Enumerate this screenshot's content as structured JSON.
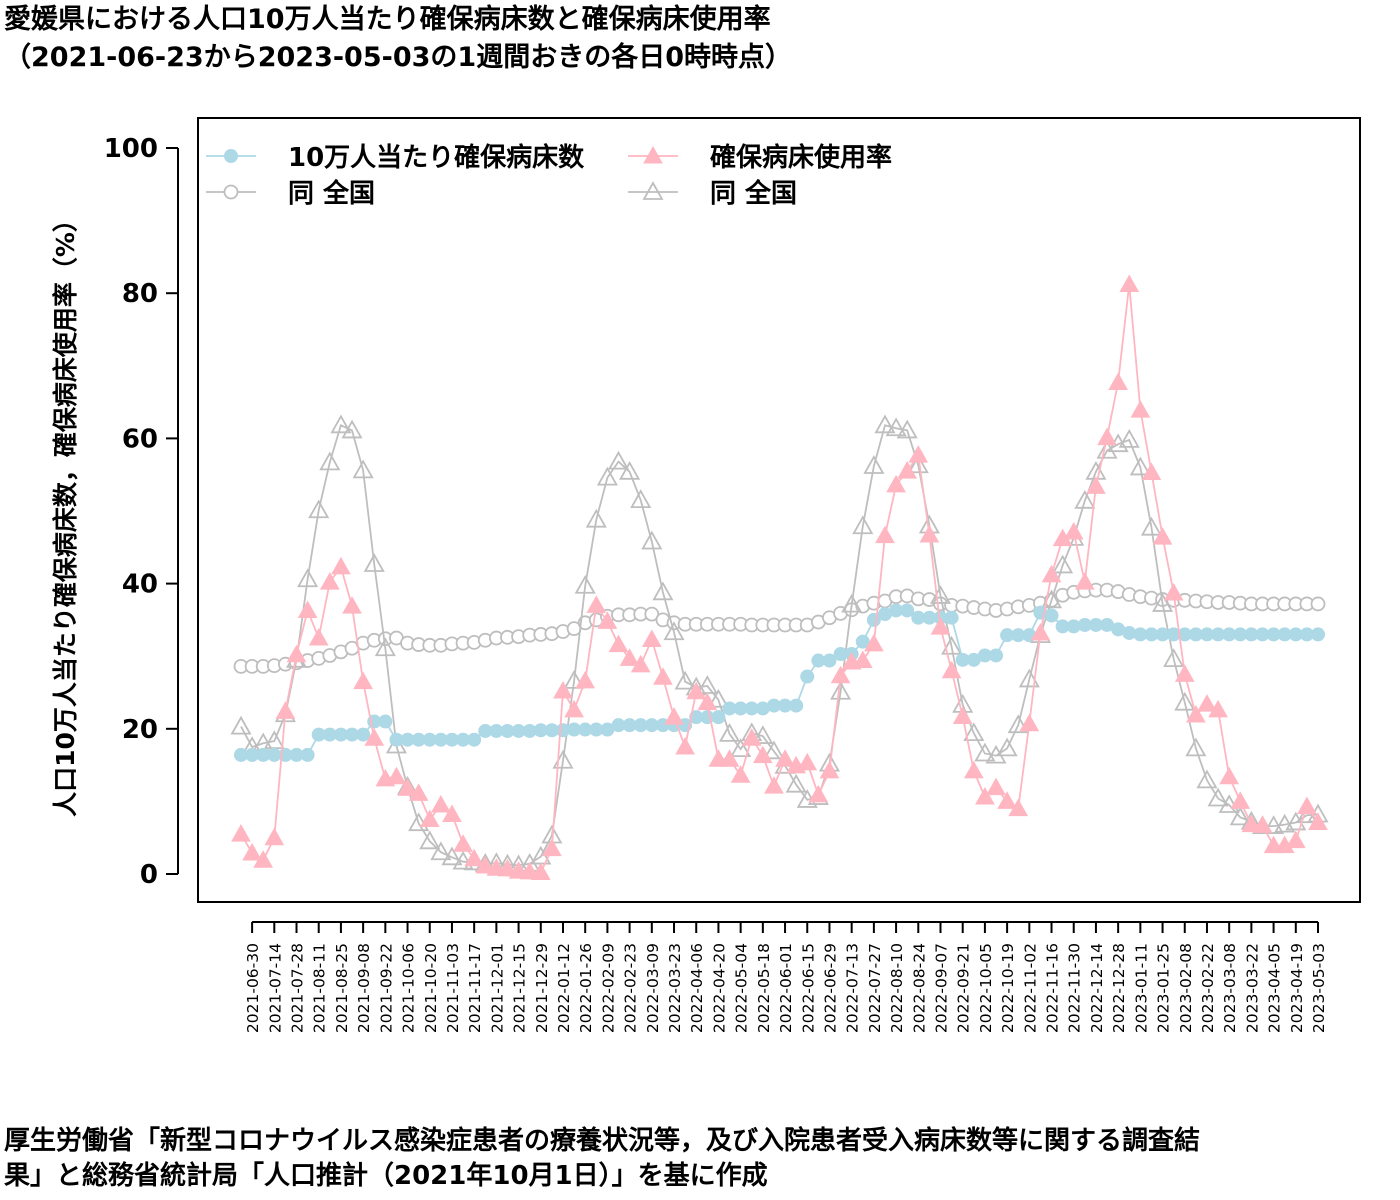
{
  "title": "愛媛県における人口10万人当たり確保病床数と確保病床使用率",
  "subtitle": "（2021-06-23から2023-05-03の1週間おきの各日0時時点）",
  "note": {
    "line1": "厚生労働省「新型コロナウイルス感染症患者の療養状況等，及び入院患者受入病床数等に関する調査結",
    "line2": "果」と総務省統計局「人口推計（2021年10月1日）」を基に作成"
  },
  "chart_data": {
    "type": "line",
    "ylabel": "人口10万人当たり確保病床数，確保病床使用率（%）",
    "xlabel": "",
    "ylim": [
      0,
      100
    ],
    "yticks": [
      0,
      20,
      40,
      60,
      80,
      100
    ],
    "grid": false,
    "legend_position": "top-left",
    "x_tick_labels": [
      "2021-06-30",
      "2021-07-14",
      "2021-07-28",
      "2021-08-11",
      "2021-08-25",
      "2021-09-08",
      "2021-09-22",
      "2021-10-06",
      "2021-10-20",
      "2021-11-03",
      "2021-11-17",
      "2021-12-01",
      "2021-12-15",
      "2021-12-29",
      "2022-01-12",
      "2022-01-26",
      "2022-02-09",
      "2022-02-23",
      "2022-03-09",
      "2022-03-23",
      "2022-04-06",
      "2022-04-20",
      "2022-05-04",
      "2022-05-18",
      "2022-06-01",
      "2022-06-15",
      "2022-06-29",
      "2022-07-13",
      "2022-07-27",
      "2022-08-10",
      "2022-08-24",
      "2022-09-07",
      "2022-09-21",
      "2022-10-05",
      "2022-10-19",
      "2022-11-02",
      "2022-11-16",
      "2022-11-30",
      "2022-12-14",
      "2022-12-28",
      "2023-01-11",
      "2023-01-25",
      "2023-02-08",
      "2023-02-22",
      "2023-03-08",
      "2023-03-22",
      "2023-04-05",
      "2023-04-19",
      "2023-05-03"
    ],
    "series": [
      {
        "name": "10万人当たり確保病床数",
        "color": "#add8e6",
        "marker": "filled-circle",
        "values": [
          16.4,
          16.4,
          16.4,
          16.4,
          16.4,
          16.4,
          16.4,
          19.2,
          19.2,
          19.2,
          19.2,
          19.2,
          21.0,
          21.0,
          18.5,
          18.5,
          18.5,
          18.5,
          18.5,
          18.5,
          18.5,
          18.5,
          19.7,
          19.7,
          19.7,
          19.7,
          19.7,
          19.8,
          19.8,
          19.8,
          19.9,
          19.9,
          19.9,
          19.9,
          20.5,
          20.5,
          20.5,
          20.5,
          20.5,
          20.5,
          20.5,
          21.6,
          21.6,
          21.6,
          22.8,
          22.8,
          22.8,
          22.8,
          23.2,
          23.2,
          23.2,
          27.2,
          29.4,
          29.4,
          30.3,
          30.3,
          32.0,
          35.0,
          35.8,
          36.3,
          36.3,
          35.3,
          35.3,
          35.3,
          35.3,
          29.5,
          29.5,
          30.1,
          30.1,
          32.9,
          32.9,
          32.9,
          36.0,
          35.6,
          34.1,
          34.1,
          34.3,
          34.3,
          34.3,
          33.7,
          33.2,
          33.0,
          33.0,
          33.0,
          33.0,
          33.0,
          33.0,
          33.0,
          33.0,
          33.0,
          33.0,
          33.0,
          33.0,
          33.0,
          33.0,
          33.0,
          33.0,
          33.0
        ]
      },
      {
        "name": "同 全国",
        "color": "#bebebe",
        "marker": "open-circle",
        "values": [
          28.6,
          28.6,
          28.6,
          28.7,
          28.9,
          29.1,
          29.4,
          29.7,
          30.1,
          30.6,
          31.1,
          31.8,
          32.2,
          32.4,
          32.5,
          31.8,
          31.6,
          31.5,
          31.5,
          31.7,
          31.8,
          31.9,
          32.2,
          32.5,
          32.6,
          32.7,
          32.9,
          33.0,
          33.1,
          33.4,
          33.8,
          34.6,
          35.0,
          35.5,
          35.7,
          35.7,
          35.8,
          35.8,
          35.0,
          34.6,
          34.4,
          34.4,
          34.4,
          34.4,
          34.4,
          34.4,
          34.3,
          34.3,
          34.3,
          34.3,
          34.3,
          34.3,
          34.7,
          35.3,
          35.9,
          36.4,
          36.9,
          37.3,
          37.6,
          38.2,
          38.3,
          37.9,
          37.8,
          37.2,
          37.0,
          36.9,
          36.7,
          36.5,
          36.3,
          36.5,
          36.8,
          37.0,
          37.3,
          37.7,
          38.4,
          38.8,
          39.0,
          39.1,
          39.1,
          38.9,
          38.5,
          38.2,
          38.0,
          37.8,
          37.7,
          37.7,
          37.6,
          37.5,
          37.4,
          37.4,
          37.3,
          37.2,
          37.2,
          37.2,
          37.2,
          37.2,
          37.2,
          37.2
        ]
      },
      {
        "name": "確保病床使用率",
        "color": "#ffb6c1",
        "marker": "filled-triangle",
        "values": [
          5.5,
          2.9,
          1.9,
          5.0,
          22.4,
          30.2,
          36.3,
          32.5,
          40.2,
          42.3,
          36.9,
          26.5,
          18.7,
          13.1,
          13.4,
          11.8,
          11.1,
          7.5,
          9.5,
          8.2,
          4.1,
          2.1,
          1.1,
          0.8,
          0.7,
          0.4,
          0.3,
          0.2,
          3.5,
          25.2,
          22.6,
          26.6,
          37.0,
          34.8,
          31.6,
          29.7,
          28.8,
          32.3,
          27.1,
          21.6,
          17.5,
          25.1,
          23.6,
          15.8,
          15.8,
          13.6,
          18.7,
          16.3,
          12.1,
          15.8,
          14.9,
          15.3,
          10.9,
          14.2,
          27.3,
          29.2,
          29.4,
          31.7,
          46.6,
          53.6,
          55.5,
          57.7,
          46.7,
          34.0,
          28.0,
          21.7,
          14.2,
          10.6,
          11.9,
          10.0,
          9.0,
          20.7,
          33.2,
          41.2,
          46.2,
          47.1,
          40.2,
          53.4,
          60.1,
          67.7,
          81.2,
          63.9,
          55.3,
          46.4,
          38.7,
          27.5,
          21.9,
          23.4,
          22.6,
          13.4,
          10.0,
          6.8,
          6.7,
          3.9,
          3.9,
          4.6,
          9.3,
          7.1
        ]
      },
      {
        "name": "同 全国",
        "color": "#bebebe",
        "marker": "open-triangle",
        "values": [
          20.3,
          17.5,
          18.0,
          18.3,
          22.0,
          29.5,
          40.6,
          50.1,
          56.7,
          61.8,
          61.1,
          55.6,
          42.7,
          31.1,
          17.7,
          12.0,
          7.0,
          4.5,
          3.0,
          2.3,
          1.7,
          1.6,
          1.4,
          1.5,
          1.3,
          1.2,
          1.4,
          2.4,
          5.3,
          15.6,
          26.6,
          39.7,
          48.8,
          54.6,
          56.8,
          55.4,
          51.5,
          45.8,
          38.8,
          33.3,
          26.5,
          25.7,
          25.9,
          24.0,
          19.3,
          17.2,
          19.4,
          19.0,
          16.9,
          14.9,
          12.3,
          10.2,
          10.6,
          15.2,
          25.1,
          37.1,
          47.9,
          56.2,
          61.8,
          61.4,
          61.1,
          56.3,
          48.0,
          38.3,
          31.3,
          23.3,
          19.4,
          16.6,
          16.3,
          17.3,
          20.5,
          26.8,
          32.9,
          37.7,
          42.5,
          46.3,
          51.4,
          55.4,
          58.3,
          59.2,
          59.8,
          56.0,
          47.7,
          37.2,
          29.6,
          23.6,
          17.3,
          12.9,
          10.4,
          9.5,
          7.8,
          7.2,
          6.6,
          6.6,
          6.8,
          7.1,
          8.1,
          8.2
        ]
      }
    ]
  }
}
